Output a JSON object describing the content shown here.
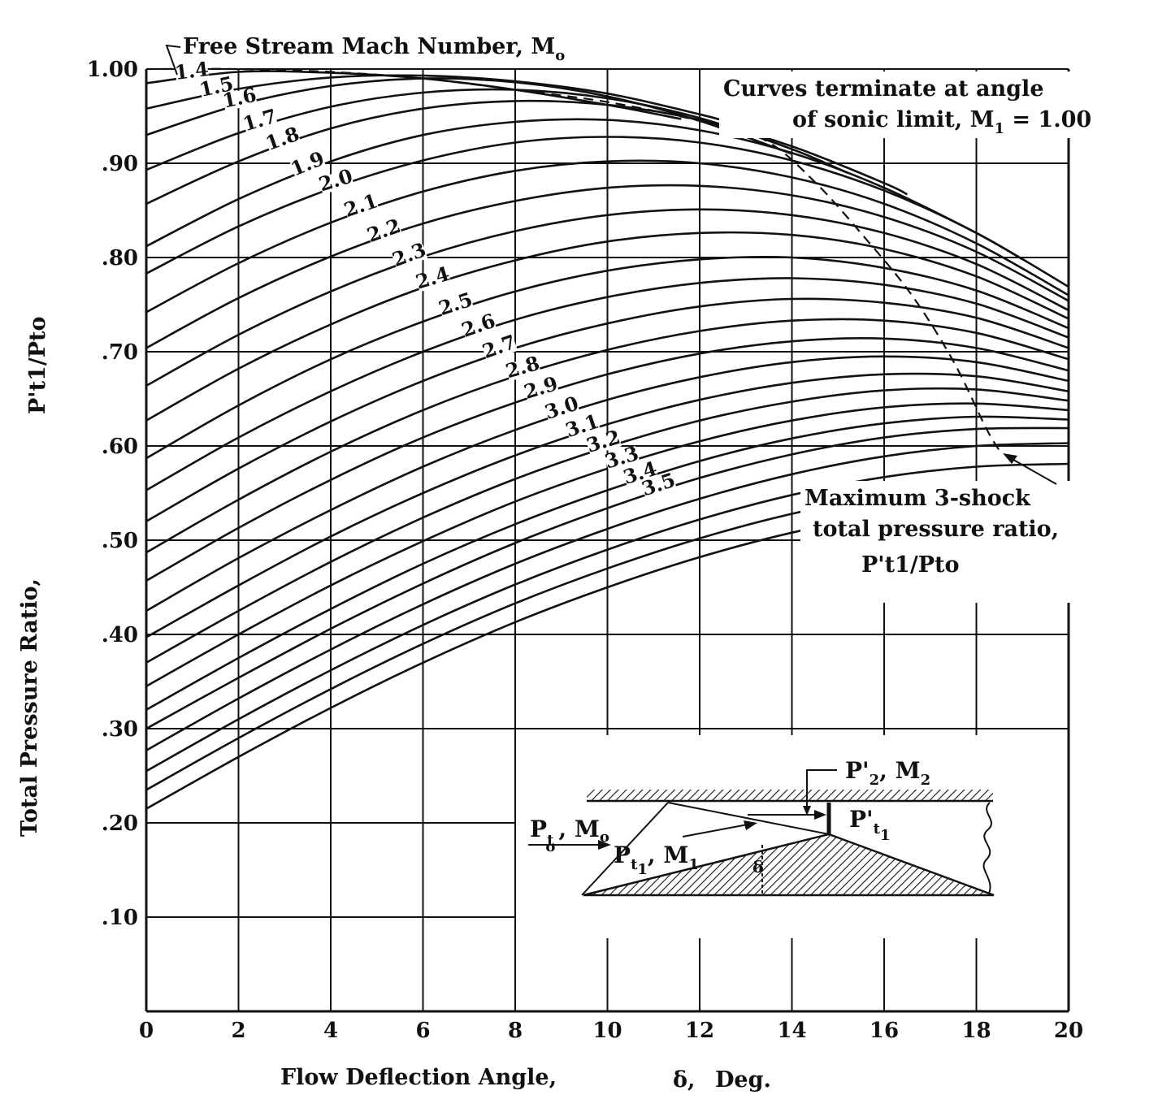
{
  "chart_data": {
    "type": "line",
    "xlabel": "Flow Deflection Angle,",
    "xlabel_symbol": "δ,",
    "xlabel_unit": "Deg.",
    "ylabel": "Total Pressure Ratio,",
    "ylabel_symbol": "P't1/Pto",
    "xlim": [
      0,
      20
    ],
    "ylim": [
      0,
      1.0
    ],
    "x_ticks": [
      "0",
      "2",
      "4",
      "6",
      "8",
      "10",
      "12",
      "14",
      "16",
      "18",
      "20"
    ],
    "y_ticks": [
      ".10",
      ".20",
      ".30",
      ".40",
      ".50",
      ".60",
      ".70",
      ".80",
      ".90",
      "1.00"
    ],
    "grid": true,
    "annotations": {
      "mach_header": "Free Stream Mach Number, M",
      "mach_header_sub": "o",
      "sonic_line1": "Curves terminate at angle",
      "sonic_line2": "of sonic limit,  M",
      "sonic_sub": "1",
      "sonic_value": " = 1.00",
      "max_line1": "Maximum 3-shock",
      "max_line2": "total pressure ratio,",
      "max_ratio": "P't1/Pto"
    },
    "inset": {
      "pto_label": "P",
      "pto_sub": "t",
      "pto_subsub": "o",
      "mo_label": ", M",
      "mo_sub": "o",
      "pt1_label": "P",
      "pt1_sub": "t",
      "pt1_subsub": "1",
      "m1_label": ", M",
      "m1_sub": "1",
      "pt2_label": "P'",
      "pt2_sub": "2",
      "m2_label": ",  M",
      "m2_sub": "2",
      "pt1p_label": "P'",
      "pt1p_sub": "t",
      "pt1p_subsub": "1",
      "delta": "δ"
    },
    "series": [
      {
        "name": "1.4",
        "x": [
          0,
          2,
          4,
          6,
          8,
          10,
          11.6
        ],
        "y": [
          0.985,
          0.997,
          0.996,
          0.99,
          0.978,
          0.962,
          0.947
        ]
      },
      {
        "name": "1.5",
        "x": [
          0,
          2,
          4,
          6,
          8,
          10,
          12,
          12.9
        ],
        "y": [
          0.958,
          0.979,
          0.991,
          0.993,
          0.987,
          0.974,
          0.952,
          0.94
        ]
      },
      {
        "name": "1.6",
        "x": [
          0,
          2,
          4,
          6,
          8,
          10,
          12,
          14
        ],
        "y": [
          0.93,
          0.962,
          0.982,
          0.99,
          0.986,
          0.971,
          0.945,
          0.91
        ]
      },
      {
        "name": "1.7",
        "x": [
          0,
          2,
          4,
          6,
          8,
          10,
          12,
          14,
          15.2
        ],
        "y": [
          0.893,
          0.932,
          0.96,
          0.975,
          0.978,
          0.969,
          0.948,
          0.915,
          0.89
        ]
      },
      {
        "name": "1.8",
        "x": [
          0,
          2,
          4,
          6,
          8,
          10,
          12,
          14,
          16,
          16.5
        ],
        "y": [
          0.857,
          0.902,
          0.937,
          0.958,
          0.966,
          0.962,
          0.946,
          0.918,
          0.879,
          0.867
        ]
      },
      {
        "name": "1.9",
        "x": [
          0,
          2,
          4,
          6,
          8,
          10,
          12,
          14,
          16,
          18,
          19.0
        ],
        "y": [
          0.812,
          0.862,
          0.902,
          0.93,
          0.944,
          0.946,
          0.935,
          0.911,
          0.874,
          0.826,
          0.798
        ]
      },
      {
        "name": "2.0",
        "x": [
          0,
          2,
          4,
          6,
          8,
          10,
          12,
          14,
          16,
          18,
          20
        ],
        "y": [
          0.783,
          0.833,
          0.873,
          0.903,
          0.922,
          0.928,
          0.922,
          0.903,
          0.871,
          0.826,
          0.769
        ]
      },
      {
        "name": "2.1",
        "x": [
          0,
          2,
          4,
          6,
          8,
          10,
          12,
          14,
          16,
          18,
          20
        ],
        "y": [
          0.742,
          0.794,
          0.837,
          0.87,
          0.892,
          0.902,
          0.9,
          0.885,
          0.857,
          0.815,
          0.76
        ]
      },
      {
        "name": "2.2",
        "x": [
          0,
          2,
          4,
          6,
          8,
          10,
          12,
          14,
          16,
          18,
          20
        ],
        "y": [
          0.704,
          0.757,
          0.801,
          0.836,
          0.86,
          0.874,
          0.876,
          0.866,
          0.843,
          0.806,
          0.754
        ]
      },
      {
        "name": "2.3",
        "x": [
          0,
          2,
          4,
          6,
          8,
          10,
          12,
          14,
          16,
          18,
          20
        ],
        "y": [
          0.664,
          0.718,
          0.764,
          0.801,
          0.828,
          0.845,
          0.851,
          0.845,
          0.826,
          0.793,
          0.744
        ]
      },
      {
        "name": "2.4",
        "x": [
          0,
          2,
          4,
          6,
          8,
          10,
          12,
          14,
          16,
          18,
          20
        ],
        "y": [
          0.627,
          0.682,
          0.729,
          0.768,
          0.797,
          0.817,
          0.826,
          0.824,
          0.809,
          0.78,
          0.735
        ]
      },
      {
        "name": "2.5",
        "x": [
          0,
          2,
          4,
          6,
          8,
          10,
          12,
          14,
          16,
          18,
          20
        ],
        "y": [
          0.587,
          0.643,
          0.692,
          0.732,
          0.764,
          0.786,
          0.798,
          0.8,
          0.789,
          0.765,
          0.725
        ]
      },
      {
        "name": "2.6",
        "x": [
          0,
          2,
          4,
          6,
          8,
          10,
          12,
          14,
          16,
          18,
          20
        ],
        "y": [
          0.553,
          0.609,
          0.658,
          0.7,
          0.734,
          0.758,
          0.773,
          0.778,
          0.771,
          0.751,
          0.715
        ]
      },
      {
        "name": "2.7",
        "x": [
          0,
          2,
          4,
          6,
          8,
          10,
          12,
          14,
          16,
          18,
          20
        ],
        "y": [
          0.52,
          0.576,
          0.626,
          0.669,
          0.704,
          0.73,
          0.748,
          0.756,
          0.752,
          0.736,
          0.704
        ]
      },
      {
        "name": "2.8",
        "x": [
          0,
          2,
          4,
          6,
          8,
          10,
          12,
          14,
          16,
          18,
          20
        ],
        "y": [
          0.487,
          0.543,
          0.594,
          0.638,
          0.674,
          0.702,
          0.722,
          0.733,
          0.733,
          0.72,
          0.692
        ]
      },
      {
        "name": "2.9",
        "x": [
          0,
          2,
          4,
          6,
          8,
          10,
          12,
          14,
          16,
          18,
          20
        ],
        "y": [
          0.457,
          0.513,
          0.564,
          0.609,
          0.646,
          0.676,
          0.698,
          0.711,
          0.714,
          0.704,
          0.68
        ]
      },
      {
        "name": "3.0",
        "x": [
          0,
          2,
          4,
          6,
          8,
          10,
          12,
          14,
          16,
          18,
          20
        ],
        "y": [
          0.425,
          0.481,
          0.532,
          0.578,
          0.617,
          0.649,
          0.673,
          0.689,
          0.695,
          0.689,
          0.669
        ]
      },
      {
        "name": "3.1",
        "x": [
          0,
          2,
          4,
          6,
          8,
          10,
          12,
          14,
          16,
          18,
          20
        ],
        "y": [
          0.397,
          0.452,
          0.504,
          0.55,
          0.59,
          0.623,
          0.649,
          0.667,
          0.676,
          0.674,
          0.658
        ]
      },
      {
        "name": "3.2",
        "x": [
          0,
          2,
          4,
          6,
          8,
          10,
          12,
          14,
          16,
          18,
          20
        ],
        "y": [
          0.37,
          0.425,
          0.477,
          0.524,
          0.565,
          0.599,
          0.627,
          0.647,
          0.659,
          0.66,
          0.648
        ]
      },
      {
        "name": "3.3",
        "x": [
          0,
          2,
          4,
          6,
          8,
          10,
          12,
          14,
          16,
          18,
          20
        ],
        "y": [
          0.345,
          0.4,
          0.452,
          0.499,
          0.541,
          0.576,
          0.605,
          0.627,
          0.641,
          0.645,
          0.638
        ]
      },
      {
        "name": "3.4",
        "x": [
          0,
          2,
          4,
          6,
          8,
          10,
          12,
          14,
          16,
          18,
          20
        ],
        "y": [
          0.32,
          0.375,
          0.427,
          0.475,
          0.517,
          0.553,
          0.584,
          0.608,
          0.624,
          0.631,
          0.628
        ]
      },
      {
        "name": "3.5",
        "x": [
          0,
          2,
          4,
          6,
          8,
          10,
          12,
          14,
          16,
          18,
          20
        ],
        "y": [
          0.3,
          0.354,
          0.406,
          0.454,
          0.497,
          0.534,
          0.566,
          0.591,
          0.609,
          0.618,
          0.619
        ]
      }
    ],
    "extra_curves": {
      "x": [
        0,
        2,
        4,
        6,
        8,
        10,
        12,
        14,
        16,
        18,
        20
      ],
      "starts": [
        0.277,
        0.255,
        0.235,
        0.215
      ],
      "rise": [
        0.0,
        0.055,
        0.107,
        0.155,
        0.198,
        0.235,
        0.267,
        0.293,
        0.312,
        0.323,
        0.326
      ]
    },
    "sonic_limit": {
      "x": [
        0,
        2,
        4,
        6,
        8,
        10,
        12,
        13.4,
        14.5,
        15.6,
        16.6,
        17.5,
        18.2,
        18.5
      ],
      "y": [
        1.0,
        1.0,
        0.997,
        0.99,
        0.978,
        0.965,
        0.945,
        0.925,
        0.88,
        0.82,
        0.76,
        0.69,
        0.62,
        0.595
      ]
    },
    "mach_label_positions": {
      "x": [
        1.0,
        1.55,
        2.05,
        2.5,
        3.0,
        3.55,
        4.15,
        4.7,
        5.2,
        5.75,
        6.25,
        6.75,
        7.25,
        7.7,
        8.2,
        8.6,
        9.05,
        9.5,
        9.95,
        10.35,
        10.75,
        11.15
      ]
    }
  }
}
